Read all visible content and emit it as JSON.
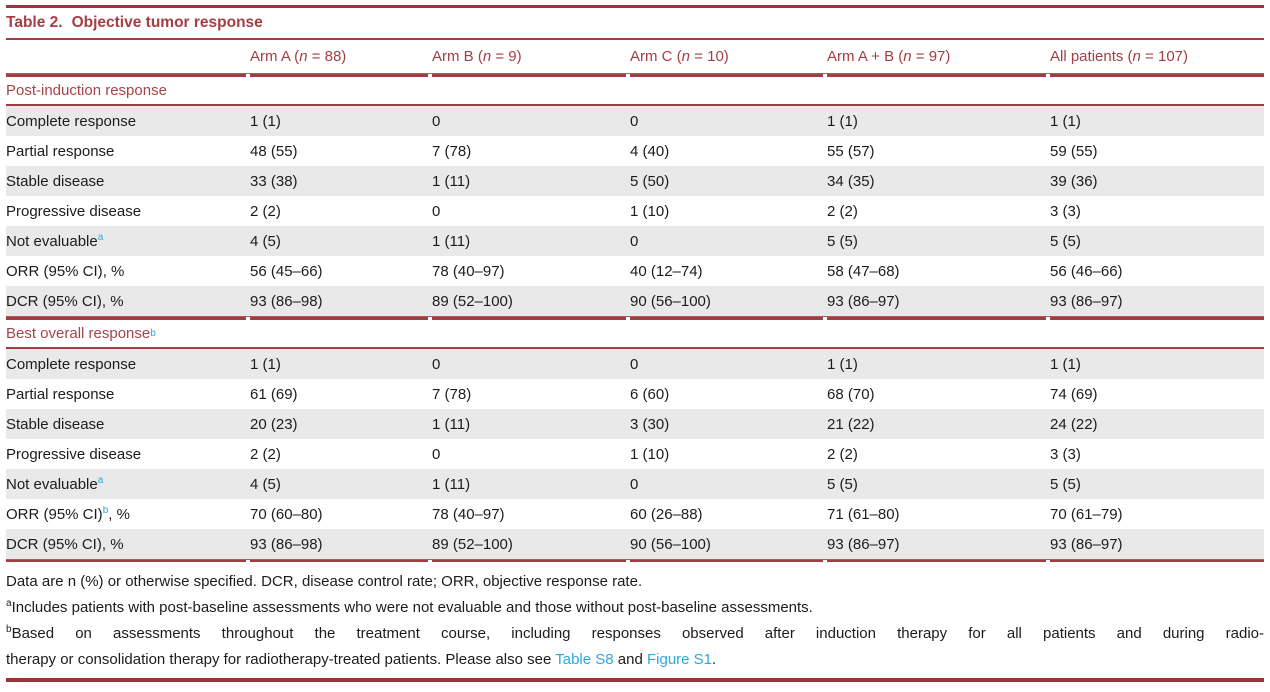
{
  "table": {
    "title_label": "Table 2.",
    "title_text": "Objective tumor response",
    "columns": [
      {
        "pre": "Arm A (",
        "n": "n",
        "post": " = 88)"
      },
      {
        "pre": "Arm B (",
        "n": "n",
        "post": " = 9)"
      },
      {
        "pre": "Arm C (",
        "n": "n",
        "post": " = 10)"
      },
      {
        "pre": "Arm A + B (",
        "n": "n",
        "post": " = 97)"
      },
      {
        "pre": "All patients (",
        "n": "n",
        "post": " = 107)"
      }
    ],
    "sections": [
      {
        "header": {
          "label": "Post-induction response",
          "sup": ""
        },
        "rows": [
          {
            "pre": "Complete response",
            "sup": "",
            "post": "",
            "values": [
              "1 (1)",
              "0",
              "0",
              "1 (1)",
              "1 (1)"
            ]
          },
          {
            "pre": "Partial response",
            "sup": "",
            "post": "",
            "values": [
              "48 (55)",
              "7 (78)",
              "4 (40)",
              "55 (57)",
              "59 (55)"
            ]
          },
          {
            "pre": "Stable disease",
            "sup": "",
            "post": "",
            "values": [
              "33 (38)",
              "1 (11)",
              "5 (50)",
              "34 (35)",
              "39 (36)"
            ]
          },
          {
            "pre": "Progressive disease",
            "sup": "",
            "post": "",
            "values": [
              "2 (2)",
              "0",
              "1 (10)",
              "2 (2)",
              "3 (3)"
            ]
          },
          {
            "pre": "Not evaluable",
            "sup": "a",
            "post": "",
            "values": [
              "4 (5)",
              "1 (11)",
              "0",
              "5 (5)",
              "5 (5)"
            ]
          },
          {
            "pre": "ORR (95% CI)",
            "sup": "",
            "post": ", %",
            "values": [
              "56 (45–66)",
              "78 (40–97)",
              "40 (12–74)",
              "58 (47–68)",
              "56 (46–66)"
            ]
          },
          {
            "pre": "DCR (95% CI)",
            "sup": "",
            "post": ", %",
            "values": [
              "93 (86–98)",
              "89 (52–100)",
              "90 (56–100)",
              "93 (86–97)",
              "93 (86–97)"
            ]
          }
        ]
      },
      {
        "header": {
          "label": "Best overall response",
          "sup": "b"
        },
        "rows": [
          {
            "pre": "Complete response",
            "sup": "",
            "post": "",
            "values": [
              "1 (1)",
              "0",
              "0",
              "1 (1)",
              "1 (1)"
            ]
          },
          {
            "pre": "Partial response",
            "sup": "",
            "post": "",
            "values": [
              "61 (69)",
              "7 (78)",
              "6 (60)",
              "68 (70)",
              "74 (69)"
            ]
          },
          {
            "pre": "Stable disease",
            "sup": "",
            "post": "",
            "values": [
              "20 (23)",
              "1 (11)",
              "3 (30)",
              "21 (22)",
              "24 (22)"
            ]
          },
          {
            "pre": "Progressive disease",
            "sup": "",
            "post": "",
            "values": [
              "2 (2)",
              "0",
              "1 (10)",
              "2 (2)",
              "3 (3)"
            ]
          },
          {
            "pre": "Not evaluable",
            "sup": "a",
            "post": "",
            "values": [
              "4 (5)",
              "1 (11)",
              "0",
              "5 (5)",
              "5 (5)"
            ]
          },
          {
            "pre": "ORR (95% CI)",
            "sup": "b",
            "post": ", %",
            "values": [
              "70 (60–80)",
              "78 (40–97)",
              "60 (26–88)",
              "71 (61–80)",
              "70 (61–79)"
            ]
          },
          {
            "pre": "DCR (95% CI)",
            "sup": "",
            "post": ", %",
            "values": [
              "93 (86–98)",
              "89 (52–100)",
              "90 (56–100)",
              "93 (86–97)",
              "93 (86–97)"
            ]
          }
        ]
      }
    ],
    "footnotes": {
      "general": "Data are n (%) or otherwise specified. DCR, disease control rate; ORR, objective response rate.",
      "a_marker": "a",
      "a_text": "Includes patients with post-baseline assessments who were not evaluable and those without post-baseline assessments.",
      "b_marker": "b",
      "b_line1": "Based on assessments throughout the treatment course, including responses observed after induction therapy for all patients and during radio-",
      "b_line2_pre": "therapy or consolidation therapy for radiotherapy-treated patients. Please also see ",
      "b_link1": "Table S8",
      "b_mid": " and ",
      "b_link2": "Figure S1",
      "b_end": "."
    },
    "colors": {
      "accent_maroon": "#A33D43",
      "link_blue": "#2BA9DF",
      "stripe_gray": "#E9E9E9"
    }
  }
}
